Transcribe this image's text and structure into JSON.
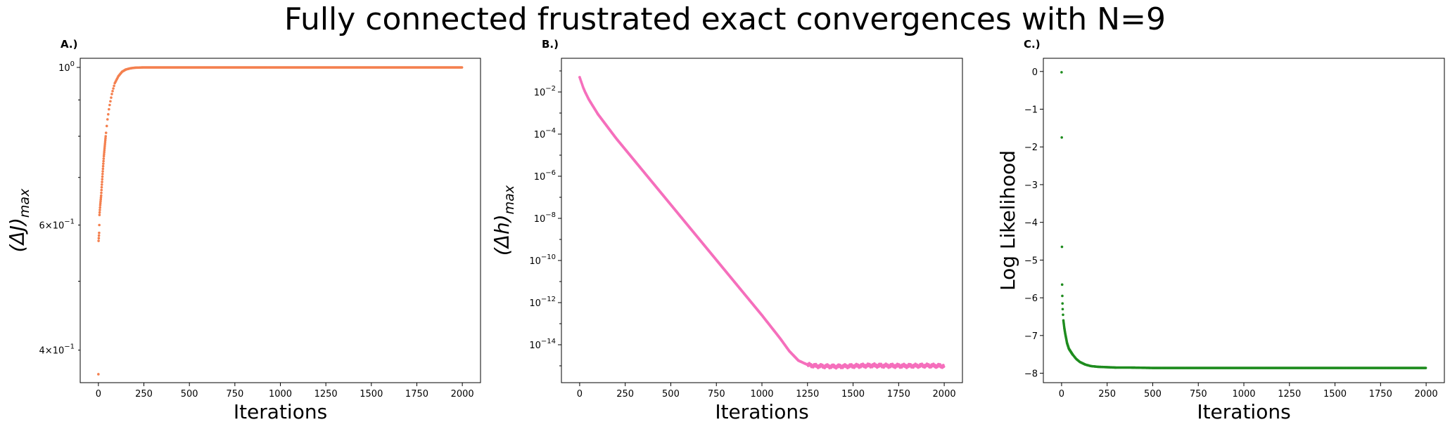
{
  "title": "Fully connected frustrated exact convergences with N=9",
  "colors": {
    "panel_a": "#F4804F",
    "panel_b": "#F56FBC",
    "panel_c": "#1E8C1E",
    "axes": "#000000"
  },
  "chart_data": [
    {
      "panel": "A.)",
      "type": "scatter",
      "xlabel": "Iterations",
      "ylabel": "(ΔJ)max",
      "ylabel_main": "(ΔJ)",
      "ylabel_sub": "max",
      "yscale": "log",
      "xlim": [
        -100,
        2100
      ],
      "ylim": [
        0.36,
        1.03
      ],
      "xticks": [
        0,
        250,
        500,
        750,
        1000,
        1250,
        1500,
        1750,
        2000
      ],
      "yticks_major": [
        {
          "value": 1.0,
          "base": "10",
          "exp": "0"
        }
      ],
      "yticks_minor_labeled": [
        {
          "value": 0.4,
          "coef": "4×",
          "base": "10",
          "exp": "−1"
        },
        {
          "value": 0.6,
          "coef": "6×",
          "base": "10",
          "exp": "−1"
        }
      ],
      "yticks_minor": [
        0.5,
        0.7,
        0.8,
        0.9
      ],
      "points": [
        [
          0,
          0.37
        ],
        [
          1,
          0.57
        ],
        [
          2,
          0.575
        ],
        [
          3,
          0.58
        ],
        [
          4,
          0.585
        ],
        [
          5,
          0.6
        ],
        [
          6,
          0.62
        ],
        [
          7,
          0.625
        ],
        [
          8,
          0.63
        ],
        [
          9,
          0.635
        ],
        [
          10,
          0.64
        ],
        [
          15,
          0.66
        ],
        [
          20,
          0.69
        ],
        [
          25,
          0.72
        ],
        [
          30,
          0.75
        ],
        [
          40,
          0.8
        ],
        [
          50,
          0.845
        ],
        [
          60,
          0.88
        ],
        [
          75,
          0.92
        ],
        [
          90,
          0.95
        ],
        [
          110,
          0.972
        ],
        [
          130,
          0.986
        ],
        [
          150,
          0.993
        ],
        [
          175,
          0.997
        ],
        [
          200,
          0.999
        ],
        [
          250,
          1.0
        ],
        [
          2000,
          1.0
        ]
      ]
    },
    {
      "panel": "B.)",
      "type": "scatter",
      "xlabel": "Iterations",
      "ylabel": "(Δh)max",
      "ylabel_main": "(Δh)",
      "ylabel_sub": "max",
      "yscale": "log",
      "xlim": [
        -100,
        2100
      ],
      "ylim_log10": [
        -15.8,
        -0.4
      ],
      "xticks": [
        0,
        250,
        500,
        750,
        1000,
        1250,
        1500,
        1750,
        2000
      ],
      "yticks": [
        {
          "exp_value": -2,
          "base": "10",
          "exp": "−2"
        },
        {
          "exp_value": -4,
          "base": "10",
          "exp": "−4"
        },
        {
          "exp_value": -6,
          "base": "10",
          "exp": "−6"
        },
        {
          "exp_value": -8,
          "base": "10",
          "exp": "−8"
        },
        {
          "exp_value": -10,
          "base": "10",
          "exp": "−10"
        },
        {
          "exp_value": -12,
          "base": "10",
          "exp": "−12"
        },
        {
          "exp_value": -14,
          "base": "10",
          "exp": "−14"
        }
      ],
      "points_log10": [
        [
          0,
          -1.3
        ],
        [
          10,
          -1.55
        ],
        [
          20,
          -1.8
        ],
        [
          30,
          -2.0
        ],
        [
          50,
          -2.35
        ],
        [
          75,
          -2.7
        ],
        [
          100,
          -3.05
        ],
        [
          200,
          -4.2
        ],
        [
          400,
          -6.3
        ],
        [
          600,
          -8.4
        ],
        [
          800,
          -10.5
        ],
        [
          1000,
          -12.6
        ],
        [
          1100,
          -13.7
        ],
        [
          1150,
          -14.3
        ],
        [
          1200,
          -14.75
        ],
        [
          1250,
          -14.95
        ],
        [
          1300,
          -15.0
        ],
        [
          1400,
          -15.02
        ],
        [
          1500,
          -15.0
        ],
        [
          1600,
          -14.98
        ],
        [
          1700,
          -15.0
        ],
        [
          1800,
          -15.01
        ],
        [
          1900,
          -15.0
        ],
        [
          2000,
          -15.02
        ]
      ]
    },
    {
      "panel": "C.)",
      "type": "scatter",
      "xlabel": "Iterations",
      "ylabel": "Log Likelihood",
      "xlim": [
        -100,
        2100
      ],
      "ylim": [
        -8.25,
        0.35
      ],
      "xticks": [
        0,
        250,
        500,
        750,
        1000,
        1250,
        1500,
        1750,
        2000
      ],
      "yticks": [
        0,
        -1,
        -2,
        -3,
        -4,
        -5,
        -6,
        -7,
        -8
      ],
      "points": [
        [
          0,
          -0.02
        ],
        [
          1,
          -1.75
        ],
        [
          2,
          -4.65
        ],
        [
          3,
          -5.65
        ],
        [
          4,
          -5.95
        ],
        [
          5,
          -6.15
        ],
        [
          6,
          -6.3
        ],
        [
          8,
          -6.45
        ],
        [
          10,
          -6.6
        ],
        [
          15,
          -6.8
        ],
        [
          20,
          -6.95
        ],
        [
          30,
          -7.2
        ],
        [
          40,
          -7.35
        ],
        [
          60,
          -7.5
        ],
        [
          80,
          -7.62
        ],
        [
          100,
          -7.7
        ],
        [
          130,
          -7.77
        ],
        [
          160,
          -7.81
        ],
        [
          200,
          -7.83
        ],
        [
          250,
          -7.84
        ],
        [
          300,
          -7.85
        ],
        [
          380,
          -7.85
        ],
        [
          500,
          -7.86
        ],
        [
          2000,
          -7.86
        ]
      ]
    }
  ]
}
